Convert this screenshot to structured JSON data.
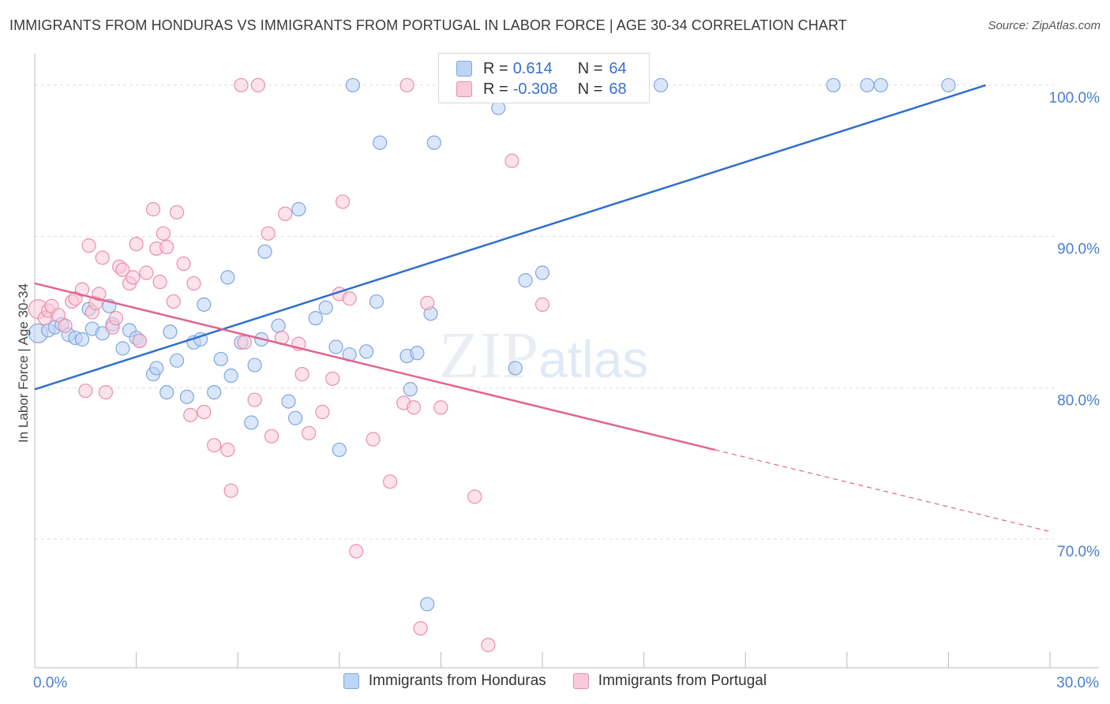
{
  "title": "IMMIGRANTS FROM HONDURAS VS IMMIGRANTS FROM PORTUGAL IN LABOR FORCE | AGE 30-34 CORRELATION CHART",
  "source": "Source: ZipAtlas.com",
  "watermark": {
    "zip": "ZIP",
    "atlas": "atlas"
  },
  "colors": {
    "honduras_fill": "#bcd4f5",
    "honduras_stroke": "#7fa6de",
    "honduras_line": "#2f6fd0",
    "portugal_fill": "#f9cad8",
    "portugal_stroke": "#ea8fad",
    "portugal_line": "#e2648f",
    "tick_text": "#4a7fd0",
    "grid": "#dddddd"
  },
  "legend": {
    "rows": [
      {
        "r_label": "R =",
        "r_value": "0.614",
        "n_label": "N =",
        "n_value": "64"
      },
      {
        "r_label": "R =",
        "r_value": "-0.308",
        "n_label": "N =",
        "n_value": "68"
      }
    ]
  },
  "chart_data": {
    "type": "scatter",
    "title": "IMMIGRANTS FROM HONDURAS VS IMMIGRANTS FROM PORTUGAL IN LABOR FORCE | AGE 30-34 CORRELATION CHART",
    "xlabel": "",
    "ylabel": "In Labor Force | Age 30-34",
    "xlim": [
      0,
      30
    ],
    "ylim": [
      61.5,
      102.5
    ],
    "x_tick_labels": [
      {
        "value": 0,
        "label": "0.0%"
      },
      {
        "value": 30,
        "label": "30.0%"
      }
    ],
    "y_ticks": [
      {
        "value": 70,
        "label": "70.0%"
      },
      {
        "value": 80,
        "label": "80.0%"
      },
      {
        "value": 90,
        "label": "90.0%"
      },
      {
        "value": 100,
        "label": "100.0%"
      }
    ],
    "grid": true,
    "legend_position": "top-center",
    "series": [
      {
        "name": "Immigrants from Honduras",
        "points": [
          [
            0.1,
            83.6
          ],
          [
            0.4,
            83.8
          ],
          [
            0.6,
            84.0
          ],
          [
            0.8,
            84.2
          ],
          [
            1.0,
            83.5
          ],
          [
            1.2,
            83.3
          ],
          [
            1.4,
            83.2
          ],
          [
            1.6,
            85.2
          ],
          [
            1.7,
            83.9
          ],
          [
            2.0,
            83.6
          ],
          [
            2.2,
            85.4
          ],
          [
            2.3,
            84.2
          ],
          [
            2.6,
            82.6
          ],
          [
            2.8,
            83.8
          ],
          [
            3.0,
            83.3
          ],
          [
            3.1,
            83.1
          ],
          [
            3.5,
            80.9
          ],
          [
            3.6,
            81.3
          ],
          [
            3.9,
            79.7
          ],
          [
            4.0,
            83.7
          ],
          [
            4.2,
            81.8
          ],
          [
            4.5,
            79.4
          ],
          [
            4.7,
            83.0
          ],
          [
            4.9,
            83.2
          ],
          [
            5.0,
            85.5
          ],
          [
            5.3,
            79.7
          ],
          [
            5.5,
            81.9
          ],
          [
            5.7,
            87.3
          ],
          [
            5.8,
            80.8
          ],
          [
            6.1,
            83.0
          ],
          [
            6.4,
            77.7
          ],
          [
            6.5,
            81.5
          ],
          [
            6.7,
            83.2
          ],
          [
            6.8,
            89.0
          ],
          [
            7.2,
            84.1
          ],
          [
            7.5,
            79.1
          ],
          [
            7.7,
            78.0
          ],
          [
            7.8,
            91.8
          ],
          [
            8.3,
            84.6
          ],
          [
            8.6,
            85.3
          ],
          [
            8.9,
            82.7
          ],
          [
            9.0,
            75.9
          ],
          [
            9.3,
            82.2
          ],
          [
            9.4,
            100.0
          ],
          [
            9.8,
            82.4
          ],
          [
            10.1,
            85.7
          ],
          [
            10.2,
            96.2
          ],
          [
            11.0,
            82.1
          ],
          [
            11.1,
            79.9
          ],
          [
            11.3,
            82.3
          ],
          [
            11.6,
            65.7
          ],
          [
            11.7,
            84.9
          ],
          [
            11.8,
            96.2
          ],
          [
            13.7,
            98.5
          ],
          [
            14.2,
            81.3
          ],
          [
            14.5,
            87.1
          ],
          [
            15.0,
            87.6
          ],
          [
            15.4,
            100.0
          ],
          [
            16.8,
            100.0
          ],
          [
            18.5,
            100.0
          ],
          [
            23.6,
            100.0
          ],
          [
            24.6,
            100.0
          ],
          [
            25.0,
            100.0
          ],
          [
            27.0,
            100.0
          ]
        ],
        "trend": {
          "x": [
            0,
            28.1
          ],
          "y": [
            79.9,
            100.0
          ]
        }
      },
      {
        "name": "Immigrants from Portugal",
        "points": [
          [
            0.1,
            85.2
          ],
          [
            0.3,
            84.6
          ],
          [
            0.4,
            85.1
          ],
          [
            0.5,
            85.4
          ],
          [
            0.7,
            84.8
          ],
          [
            0.9,
            84.1
          ],
          [
            1.1,
            85.7
          ],
          [
            1.2,
            85.9
          ],
          [
            1.4,
            86.5
          ],
          [
            1.5,
            79.8
          ],
          [
            1.6,
            89.4
          ],
          [
            1.7,
            85.0
          ],
          [
            1.8,
            85.6
          ],
          [
            1.9,
            86.2
          ],
          [
            2.0,
            88.6
          ],
          [
            2.1,
            79.7
          ],
          [
            2.3,
            84.0
          ],
          [
            2.4,
            84.6
          ],
          [
            2.5,
            88.0
          ],
          [
            2.6,
            87.8
          ],
          [
            2.8,
            86.9
          ],
          [
            2.9,
            87.3
          ],
          [
            3.0,
            89.5
          ],
          [
            3.1,
            83.1
          ],
          [
            3.3,
            87.6
          ],
          [
            3.5,
            91.8
          ],
          [
            3.6,
            89.2
          ],
          [
            3.7,
            87.0
          ],
          [
            3.8,
            90.2
          ],
          [
            3.9,
            89.3
          ],
          [
            4.1,
            85.7
          ],
          [
            4.2,
            91.6
          ],
          [
            4.4,
            88.2
          ],
          [
            4.6,
            78.2
          ],
          [
            4.7,
            86.9
          ],
          [
            5.0,
            78.4
          ],
          [
            5.3,
            76.2
          ],
          [
            5.7,
            75.9
          ],
          [
            5.8,
            73.2
          ],
          [
            6.1,
            100.0
          ],
          [
            6.2,
            83.0
          ],
          [
            6.5,
            79.2
          ],
          [
            6.6,
            100.0
          ],
          [
            6.9,
            90.2
          ],
          [
            7.0,
            76.8
          ],
          [
            7.3,
            83.3
          ],
          [
            7.4,
            91.5
          ],
          [
            7.8,
            82.9
          ],
          [
            7.9,
            80.9
          ],
          [
            8.1,
            77.0
          ],
          [
            8.5,
            78.4
          ],
          [
            8.8,
            80.6
          ],
          [
            9.0,
            86.2
          ],
          [
            9.1,
            92.3
          ],
          [
            9.3,
            85.9
          ],
          [
            9.5,
            69.2
          ],
          [
            10.0,
            76.6
          ],
          [
            10.5,
            73.8
          ],
          [
            10.9,
            79.0
          ],
          [
            11.0,
            100.0
          ],
          [
            11.2,
            78.7
          ],
          [
            11.4,
            64.1
          ],
          [
            11.6,
            85.6
          ],
          [
            12.0,
            78.7
          ],
          [
            13.0,
            72.8
          ],
          [
            13.4,
            63.0
          ],
          [
            14.1,
            95.0
          ],
          [
            15.0,
            85.5
          ]
        ],
        "trend": {
          "x": [
            0,
            20.1
          ],
          "y": [
            86.9,
            75.9
          ]
        },
        "trend_dashed": {
          "x": [
            20.1,
            30
          ],
          "y": [
            75.9,
            70.5
          ]
        }
      }
    ]
  },
  "bottom_legend": [
    {
      "label": "Immigrants from Honduras"
    },
    {
      "label": "Immigrants from Portugal"
    }
  ]
}
